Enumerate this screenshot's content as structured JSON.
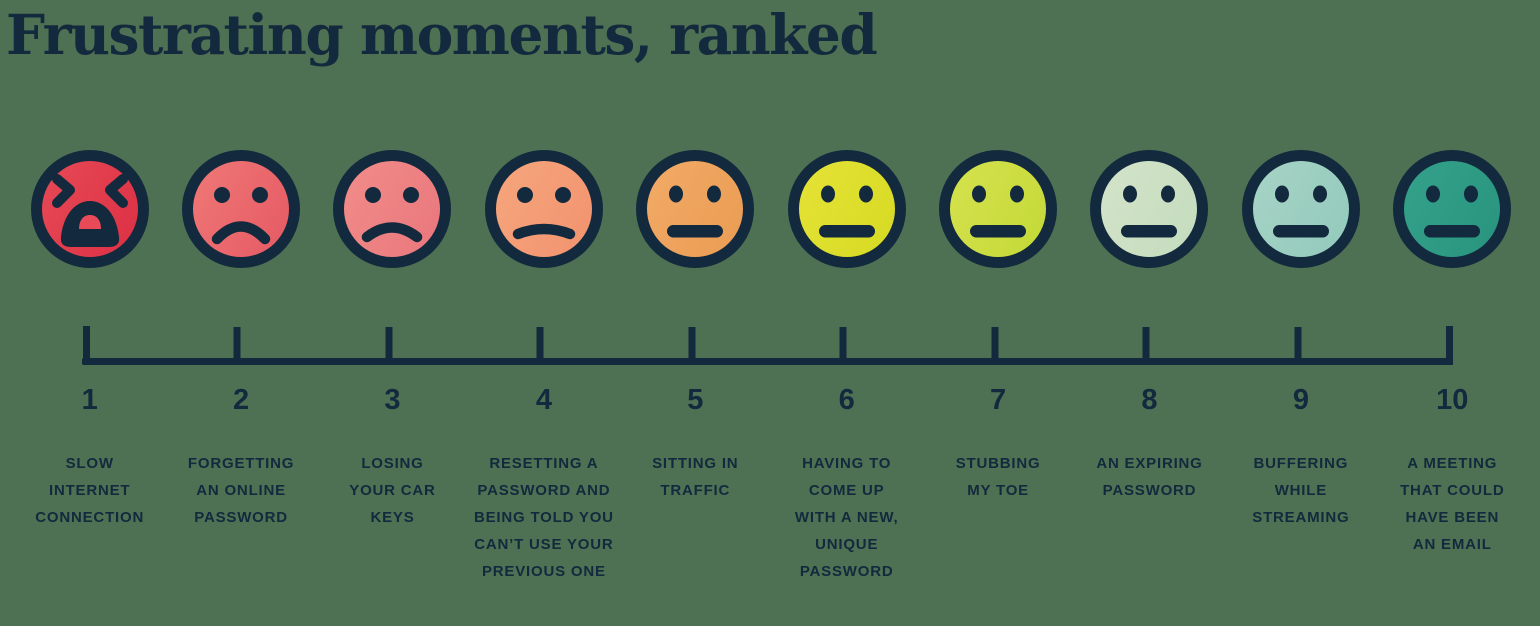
{
  "title": "Frustrating moments, ranked",
  "colors": {
    "ink": "#13293d",
    "background": "#4e7153"
  },
  "chart_data": {
    "type": "ranked_emoji_scale",
    "title": "Frustrating moments, ranked",
    "axis": {
      "min": 1,
      "max": 10,
      "ticks": [
        1,
        2,
        3,
        4,
        5,
        6,
        7,
        8,
        9,
        10
      ],
      "orientation": "horizontal"
    },
    "legend": "faces range from wailing red (1, most frustrating) to neutral teal (10, least frustrating)",
    "items": [
      {
        "rank": "1",
        "mood": "wailing",
        "icon": "wailing-face-icon",
        "color_left": "#e84b57",
        "color_right": "#dd3346",
        "label": "SLOW\nINTERNET\nCONNECTION"
      },
      {
        "rank": "2",
        "mood": "frown-deep",
        "icon": "sad-face-icon",
        "color_left": "#f07a77",
        "color_right": "#e65d66",
        "label": "FORGETTING\nAN ONLINE\nPASSWORD"
      },
      {
        "rank": "3",
        "mood": "frown",
        "icon": "frowning-face-icon",
        "color_left": "#f28e8a",
        "color_right": "#ea797e",
        "label": "LOSING\nYOUR CAR\nKEYS"
      },
      {
        "rank": "4",
        "mood": "frown-slight",
        "icon": "slight-frown-face-icon",
        "color_left": "#f6a77e",
        "color_right": "#f29570",
        "label": "RESETTING A\nPASSWORD AND\nBEING TOLD YOU\nCAN’T USE YOUR\nPREVIOUS ONE"
      },
      {
        "rank": "5",
        "mood": "neutral",
        "icon": "neutral-face-icon",
        "color_left": "#f2ab68",
        "color_right": "#eb9e55",
        "label": "SITTING IN\nTRAFFIC"
      },
      {
        "rank": "6",
        "mood": "neutral",
        "icon": "neutral-face-icon",
        "color_left": "#e6e338",
        "color_right": "#d8db25",
        "label": "HAVING TO\nCOME UP\nWITH A NEW,\nUNIQUE\nPASSWORD"
      },
      {
        "rank": "7",
        "mood": "neutral",
        "icon": "neutral-face-icon",
        "color_left": "#d6e24f",
        "color_right": "#c6da3a",
        "label": "STUBBING\nMY TOE"
      },
      {
        "rank": "8",
        "mood": "neutral",
        "icon": "neutral-face-icon",
        "color_left": "#d4e4ca",
        "color_right": "#c6ddbf",
        "label": "AN EXPIRING\nPASSWORD"
      },
      {
        "rank": "9",
        "mood": "neutral",
        "icon": "neutral-face-icon",
        "color_left": "#a8d4c6",
        "color_right": "#95cbbd",
        "label": "BUFFERING\nWHILE\nSTREAMING"
      },
      {
        "rank": "10",
        "mood": "neutral",
        "icon": "neutral-face-icon",
        "color_left": "#35a28b",
        "color_right": "#2a9680",
        "label": "A MEETING\nTHAT COULD\nHAVE BEEN\nAN EMAIL"
      }
    ]
  }
}
